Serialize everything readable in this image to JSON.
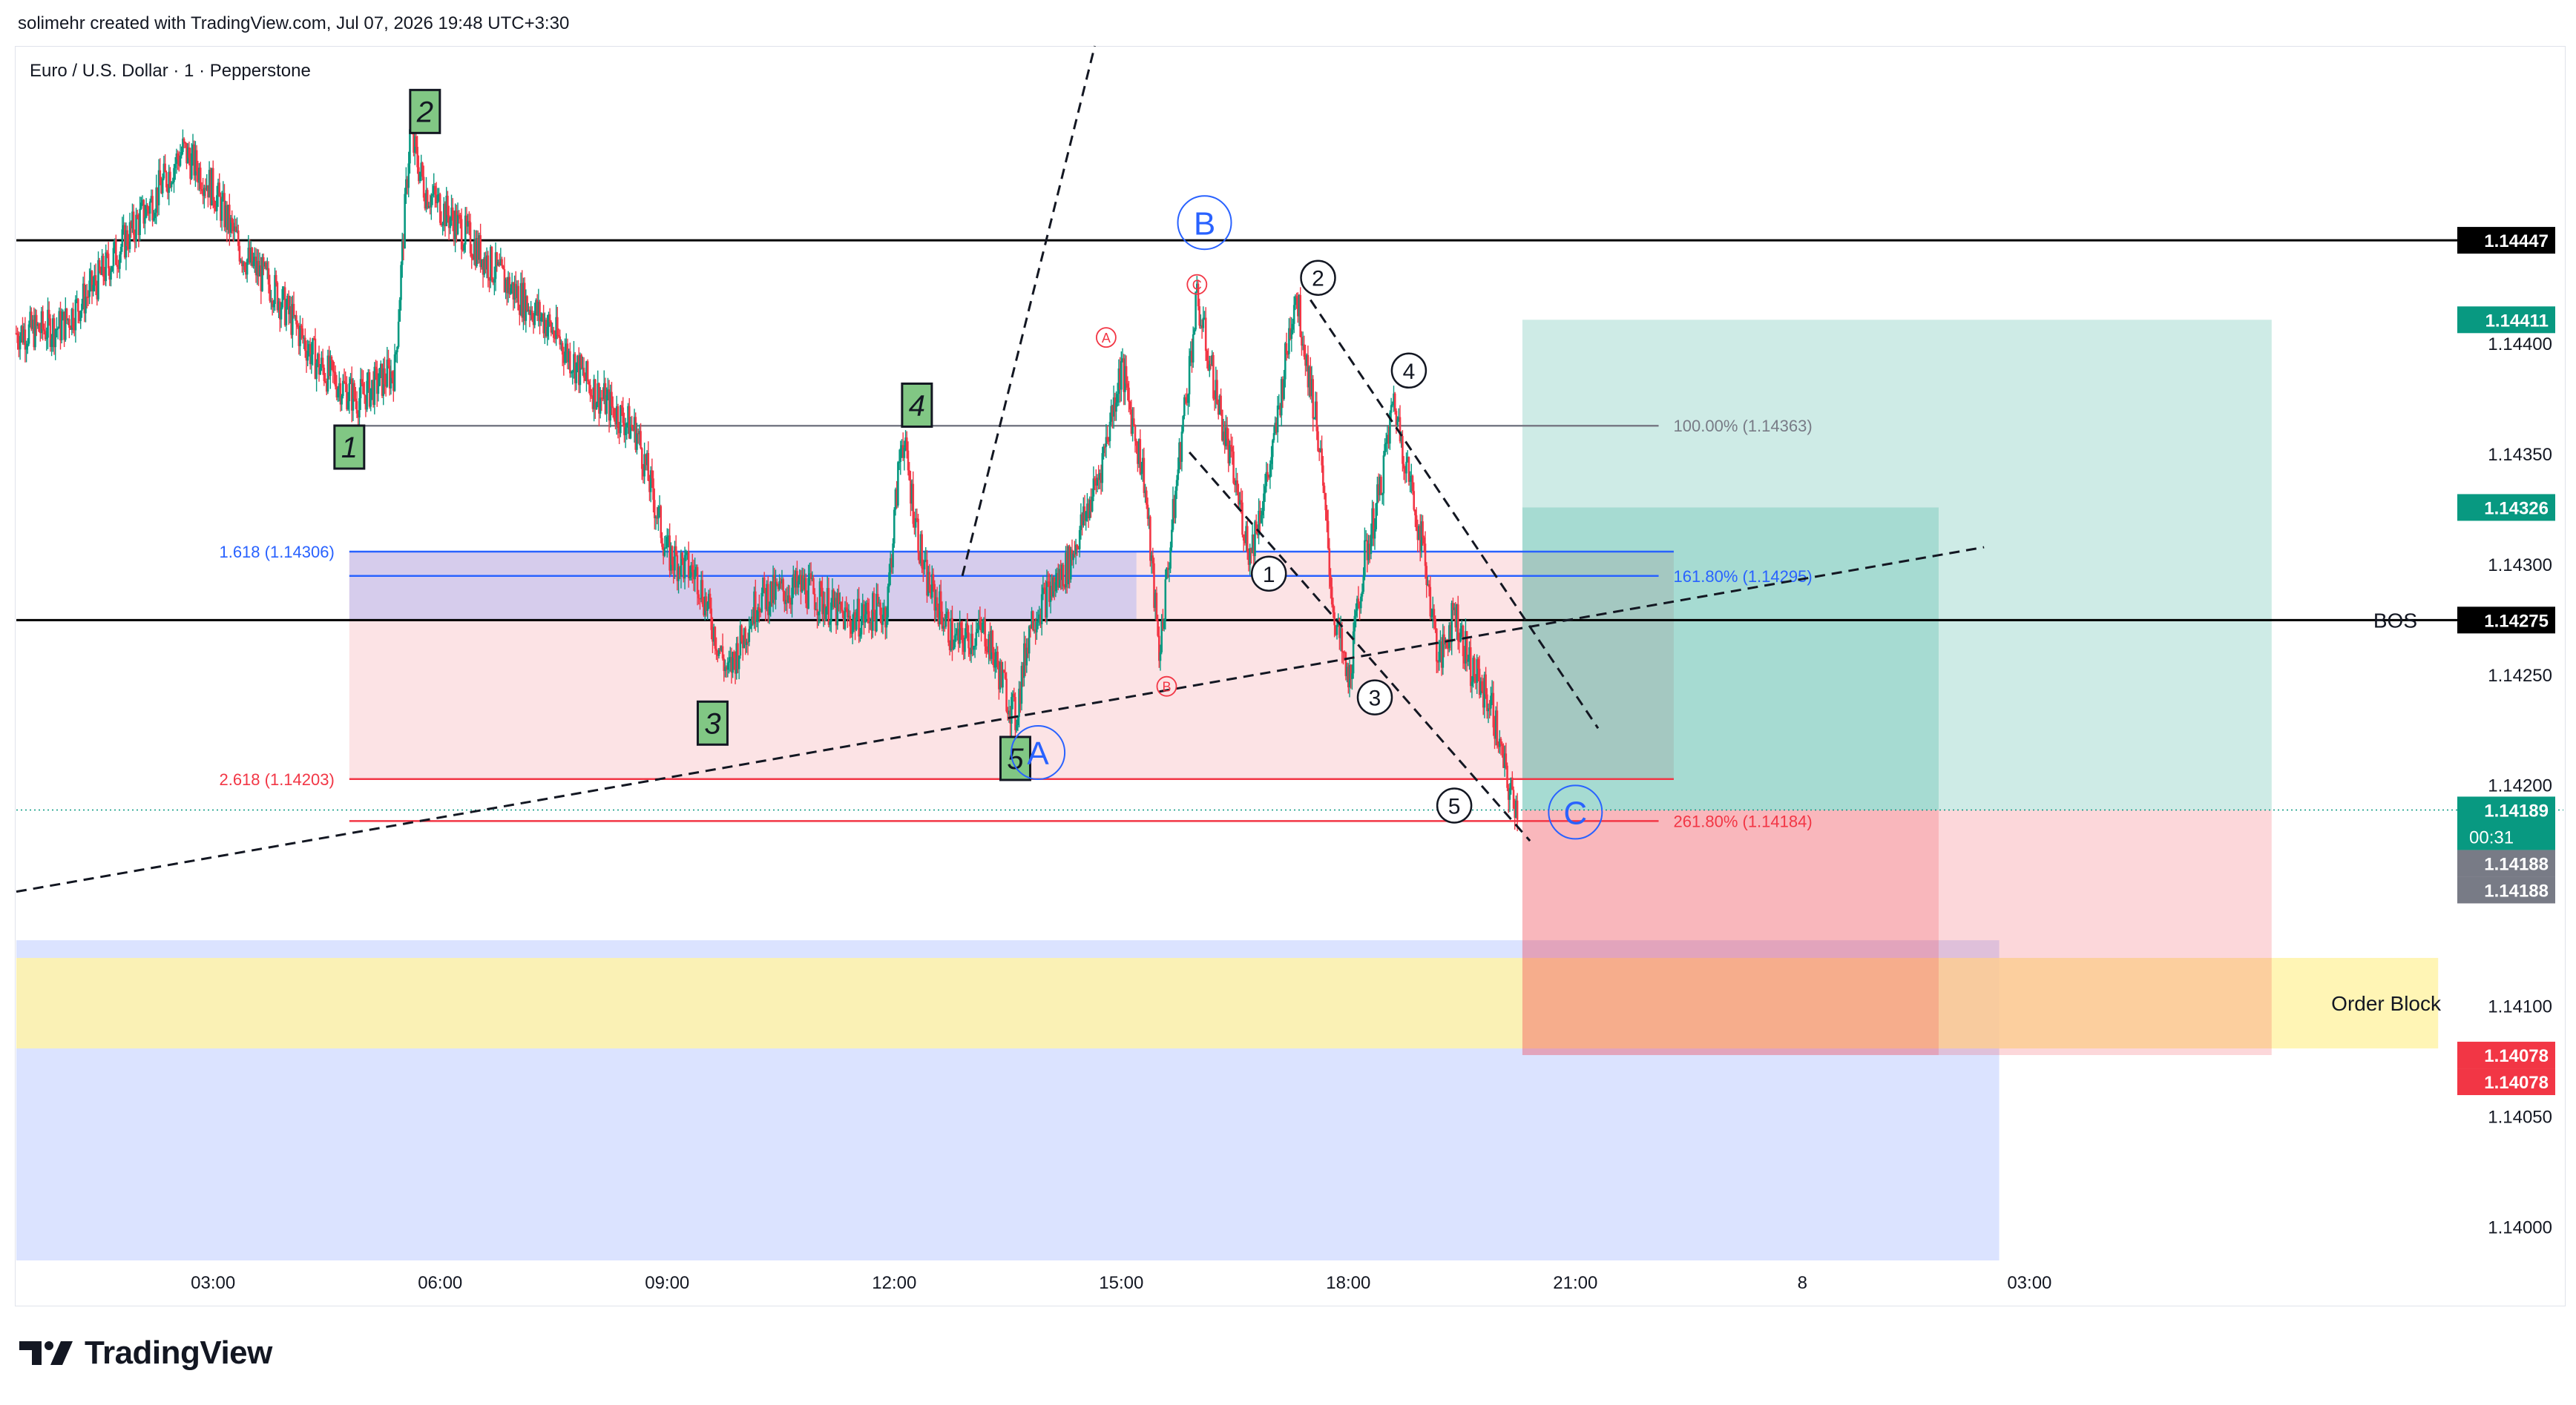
{
  "header": {
    "attribution": "solimehr created with TradingView.com, Jul 07, 2026 19:48 UTC+3:30",
    "symbol_line": "Euro / U.S. Dollar · 1 · Pepperstone"
  },
  "branding": {
    "logo_text": "TradingView",
    "logo_icon": "tradingview-logo-icon"
  },
  "chart_data": {
    "type": "candlestick",
    "symbol": "Euro / U.S. Dollar",
    "interval": "1",
    "broker": "Pepperstone",
    "x_ticks": [
      "03:00",
      "06:00",
      "09:00",
      "12:00",
      "15:00",
      "18:00",
      "21:00",
      "8",
      "03:00"
    ],
    "x_tick_hours": [
      3,
      6,
      9,
      12,
      15,
      18,
      21,
      24,
      27
    ],
    "x_range_hours": [
      0.4,
      32.8
    ],
    "y_range": [
      1.13985,
      1.14535
    ],
    "y_ticks": [
      1.144,
      1.1435,
      1.143,
      1.1425,
      1.142,
      1.1415,
      1.141,
      1.1405,
      1.14
    ],
    "y_tick_labels": [
      "1.14400",
      "1.14350",
      "1.14300",
      "1.14250",
      "1.14200",
      "1.14150",
      "1.14100",
      "1.14050",
      "1.14000"
    ],
    "price_path": [
      [
        0.4,
        1.14405
      ],
      [
        1.0,
        1.14408
      ],
      [
        1.4,
        1.14425
      ],
      [
        1.8,
        1.14445
      ],
      [
        2.2,
        1.14465
      ],
      [
        2.6,
        1.14488
      ],
      [
        3.0,
        1.1447
      ],
      [
        3.4,
        1.1444
      ],
      [
        3.8,
        1.14425
      ],
      [
        4.4,
        1.1439
      ],
      [
        4.9,
        1.14375
      ],
      [
        5.4,
        1.14388
      ],
      [
        5.6,
        1.14495
      ],
      [
        5.8,
        1.1447
      ],
      [
        6.2,
        1.14455
      ],
      [
        6.8,
        1.1443
      ],
      [
        7.4,
        1.1441
      ],
      [
        8.0,
        1.1438
      ],
      [
        8.6,
        1.1436
      ],
      [
        9.0,
        1.14305
      ],
      [
        9.4,
        1.14295
      ],
      [
        9.8,
        1.1425
      ],
      [
        10.2,
        1.14285
      ],
      [
        10.8,
        1.1429
      ],
      [
        11.4,
        1.14275
      ],
      [
        11.9,
        1.1428
      ],
      [
        12.1,
        1.1436
      ],
      [
        12.4,
        1.14295
      ],
      [
        12.8,
        1.14265
      ],
      [
        13.2,
        1.1427
      ],
      [
        13.6,
        1.1423
      ],
      [
        13.8,
        1.14275
      ],
      [
        14.3,
        1.143
      ],
      [
        14.7,
        1.1434
      ],
      [
        15.0,
        1.1439
      ],
      [
        15.3,
        1.1434
      ],
      [
        15.5,
        1.1426
      ],
      [
        15.8,
        1.1436
      ],
      [
        16.0,
        1.1442
      ],
      [
        16.3,
        1.1437
      ],
      [
        16.7,
        1.14305
      ],
      [
        17.0,
        1.1435
      ],
      [
        17.3,
        1.14425
      ],
      [
        17.6,
        1.1436
      ],
      [
        17.8,
        1.1428
      ],
      [
        18.0,
        1.14245
      ],
      [
        18.2,
        1.143
      ],
      [
        18.4,
        1.1433
      ],
      [
        18.6,
        1.14375
      ],
      [
        18.8,
        1.1434
      ],
      [
        19.0,
        1.14305
      ],
      [
        19.2,
        1.14255
      ],
      [
        19.4,
        1.1428
      ],
      [
        19.6,
        1.14255
      ],
      [
        19.9,
        1.14235
      ],
      [
        20.1,
        1.142
      ],
      [
        20.25,
        1.14189
      ]
    ],
    "horizontal_lines": [
      {
        "price": 1.14447,
        "label": "1.14447",
        "color": "#000000"
      },
      {
        "price": 1.14275,
        "label": "1.14275",
        "annotation": "BOS",
        "color": "#000000"
      }
    ],
    "current_price": {
      "price": 1.14189,
      "label": "1.14189",
      "countdown": "00:31"
    },
    "price_tags": [
      {
        "price": 1.14411,
        "label": "1.14411",
        "color": "#089981"
      },
      {
        "price": 1.14326,
        "label": "1.14326",
        "color": "#089981"
      },
      {
        "price": 1.14188,
        "label": "1.14188",
        "color": "#787b86"
      },
      {
        "price": 1.14188,
        "label": "1.14188",
        "color": "#787b86"
      },
      {
        "price": 1.14078,
        "label": "1.14078",
        "color": "#f23645"
      },
      {
        "price": 1.14078,
        "label": "1.14078",
        "color": "#f23645"
      }
    ],
    "fib_levels_left": [
      {
        "price": 1.14306,
        "label": "1.618 (1.14306)",
        "color": "#2962ff"
      },
      {
        "price": 1.14203,
        "label": "2.618 (1.14203)",
        "color": "#f23645"
      }
    ],
    "fib_levels_right": [
      {
        "price": 1.14363,
        "label": "100.00% (1.14363)",
        "color": "#787b86"
      },
      {
        "price": 1.14295,
        "label": "161.80% (1.14295)",
        "color": "#2962ff"
      },
      {
        "price": 1.14184,
        "label": "261.80% (1.14184)",
        "color": "#f23645"
      }
    ],
    "zones": {
      "order_block": {
        "label": "Order Block",
        "top": 1.14122,
        "bottom": 1.14081
      },
      "long_position": {
        "entry": 1.14189,
        "target": 1.14411,
        "stop": 1.14078
      },
      "long_position_2": {
        "entry": 1.14189,
        "target": 1.14326,
        "stop": 1.14078
      }
    },
    "wave_labels": [
      {
        "text": "1",
        "style": "green-box",
        "t": 4.8,
        "price": 1.14353
      },
      {
        "text": "2",
        "style": "green-box",
        "t": 5.8,
        "price": 1.14505
      },
      {
        "text": "3",
        "style": "green-box",
        "t": 9.6,
        "price": 1.14228
      },
      {
        "text": "4",
        "style": "green-box",
        "t": 12.3,
        "price": 1.14372
      },
      {
        "text": "5",
        "style": "green-box",
        "t": 13.6,
        "price": 1.14212
      },
      {
        "text": "A",
        "style": "blue-circle",
        "t": 13.9,
        "price": 1.14215
      },
      {
        "text": "B",
        "style": "blue-circle",
        "t": 16.1,
        "price": 1.14455
      },
      {
        "text": "C",
        "style": "blue-circle",
        "t": 21.0,
        "price": 1.14188
      },
      {
        "text": "A",
        "style": "red-small",
        "t": 14.8,
        "price": 1.14403
      },
      {
        "text": "B",
        "style": "red-small",
        "t": 15.6,
        "price": 1.14245
      },
      {
        "text": "C",
        "style": "red-small",
        "t": 16.0,
        "price": 1.14427
      },
      {
        "text": "1",
        "style": "black-circle",
        "t": 16.95,
        "price": 1.14296
      },
      {
        "text": "2",
        "style": "black-circle",
        "t": 17.6,
        "price": 1.1443
      },
      {
        "text": "3",
        "style": "black-circle",
        "t": 18.35,
        "price": 1.1424
      },
      {
        "text": "4",
        "style": "black-circle",
        "t": 18.8,
        "price": 1.14388
      },
      {
        "text": "5",
        "style": "black-circle",
        "t": 19.4,
        "price": 1.14191
      }
    ],
    "trend_lines": [
      {
        "from": [
          12.9,
          1.14295
        ],
        "to": [
          14.65,
          1.14535
        ]
      },
      {
        "from": [
          0.4,
          1.14152
        ],
        "to": [
          26.4,
          1.14308
        ]
      },
      {
        "from": [
          15.9,
          1.14351
        ],
        "to": [
          20.4,
          1.14175
        ]
      },
      {
        "from": [
          17.5,
          1.1442
        ],
        "to": [
          21.3,
          1.14226
        ]
      }
    ]
  }
}
